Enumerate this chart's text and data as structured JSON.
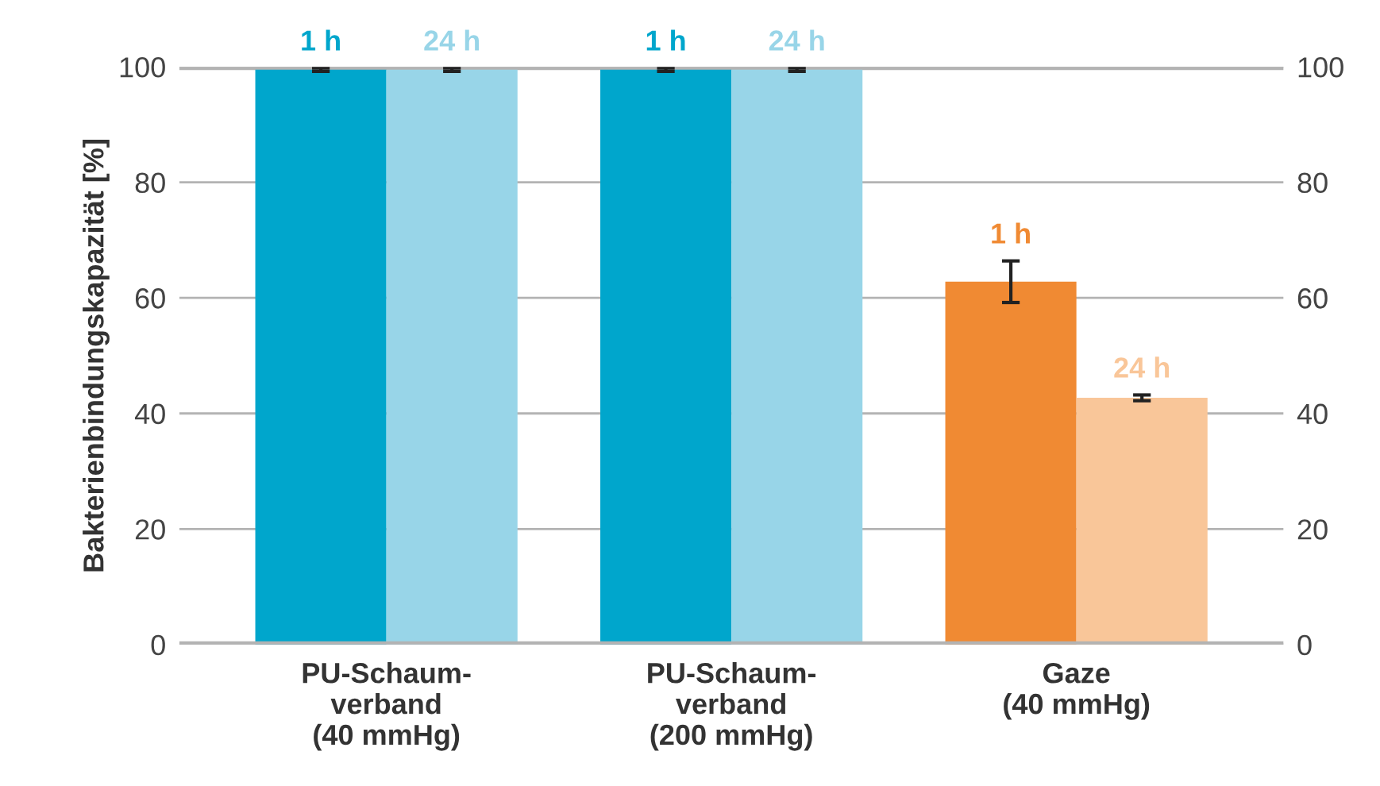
{
  "chart_data": {
    "type": "bar",
    "ylabel": "Bakterienbindungskapazität [%]",
    "categories": [
      "PU-Schaum-\nverband\n(40 mmHg)",
      "PU-Schaum-\nverband\n(200 mmHg)",
      "Gaze\n(40 mmHg)"
    ],
    "series": [
      {
        "name": "1 h",
        "colors": [
          "#00a6cc",
          "#00a6cc",
          "#f08a33"
        ],
        "values": [
          99.5,
          99.5,
          62.8
        ],
        "errors": [
          0.3,
          0.3,
          3.6
        ]
      },
      {
        "name": "24 h",
        "colors": [
          "#98d5e8",
          "#98d5e8",
          "#f9c699"
        ],
        "values": [
          99.5,
          99.5,
          42.7
        ],
        "errors": [
          0.3,
          0.3,
          0.5
        ]
      }
    ],
    "ylim": [
      0,
      100
    ],
    "yticks": [
      0,
      20,
      40,
      60,
      80,
      100
    ],
    "y2lim": [
      0,
      100
    ],
    "y2ticks": [
      0,
      20,
      40,
      60,
      80,
      100
    ],
    "grid": "y",
    "legend": false
  }
}
